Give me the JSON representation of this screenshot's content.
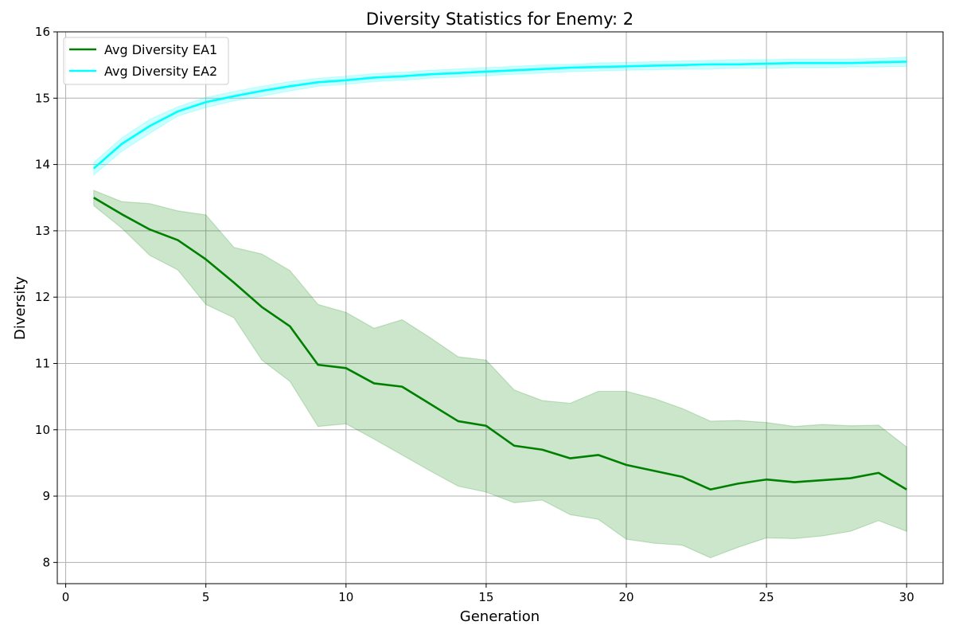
{
  "chart_data": {
    "type": "line",
    "title": "Diversity Statistics for Enemy: 2",
    "xlabel": "Generation",
    "ylabel": "Diversity",
    "xlim": [
      -0.3,
      31.3
    ],
    "ylim": [
      7.68,
      16.0
    ],
    "xticks": [
      0,
      5,
      10,
      15,
      20,
      25,
      30
    ],
    "yticks": [
      8,
      9,
      10,
      11,
      12,
      13,
      14,
      15,
      16
    ],
    "grid": true,
    "legend_position": "upper-left",
    "x": [
      1,
      2,
      3,
      4,
      5,
      6,
      7,
      8,
      9,
      10,
      11,
      12,
      13,
      14,
      15,
      16,
      17,
      18,
      19,
      20,
      21,
      22,
      23,
      24,
      25,
      26,
      27,
      28,
      29,
      30
    ],
    "series": [
      {
        "name": "Avg Diversity EA1",
        "color": "#008000",
        "band_color": "#008000",
        "band_opacity": 0.2,
        "values": [
          13.5,
          13.25,
          13.02,
          12.86,
          12.57,
          12.22,
          11.85,
          11.56,
          10.98,
          10.93,
          10.7,
          10.65,
          10.39,
          10.13,
          10.06,
          9.76,
          9.7,
          9.57,
          9.62,
          9.47,
          9.38,
          9.29,
          9.1,
          9.19,
          9.25,
          9.21,
          9.24,
          9.27,
          9.35,
          9.1
        ],
        "upper": [
          13.61,
          13.44,
          13.41,
          13.3,
          13.24,
          12.75,
          12.65,
          12.4,
          11.89,
          11.77,
          11.53,
          11.66,
          11.39,
          11.1,
          11.05,
          10.6,
          10.44,
          10.4,
          10.58,
          10.58,
          10.47,
          10.32,
          10.13,
          10.14,
          10.11,
          10.05,
          10.08,
          10.06,
          10.07,
          9.74
        ],
        "lower": [
          13.38,
          13.04,
          12.63,
          12.41,
          11.89,
          11.69,
          11.05,
          10.73,
          10.05,
          10.09,
          9.86,
          9.62,
          9.38,
          9.15,
          9.06,
          8.9,
          8.94,
          8.72,
          8.65,
          8.35,
          8.29,
          8.26,
          8.07,
          8.23,
          8.37,
          8.36,
          8.4,
          8.47,
          8.63,
          8.47
        ]
      },
      {
        "name": "Avg Diversity EA2",
        "color": "#00FFFF",
        "band_color": "#00FFFF",
        "band_opacity": 0.2,
        "values": [
          13.94,
          14.31,
          14.58,
          14.8,
          14.94,
          15.03,
          15.11,
          15.18,
          15.24,
          15.27,
          15.31,
          15.33,
          15.36,
          15.38,
          15.4,
          15.42,
          15.44,
          15.46,
          15.47,
          15.48,
          15.49,
          15.5,
          15.51,
          15.51,
          15.52,
          15.53,
          15.53,
          15.53,
          15.54,
          15.55
        ],
        "upper": [
          14.03,
          14.4,
          14.68,
          14.87,
          15.01,
          15.1,
          15.18,
          15.25,
          15.3,
          15.33,
          15.37,
          15.39,
          15.42,
          15.44,
          15.46,
          15.48,
          15.5,
          15.51,
          15.53,
          15.54,
          15.55,
          15.56,
          15.57,
          15.58,
          15.58,
          15.59,
          15.59,
          15.59,
          15.6,
          15.62
        ],
        "lower": [
          13.84,
          14.2,
          14.47,
          14.73,
          14.86,
          14.96,
          15.03,
          15.11,
          15.18,
          15.21,
          15.25,
          15.27,
          15.3,
          15.32,
          15.34,
          15.36,
          15.38,
          15.4,
          15.41,
          15.42,
          15.43,
          15.44,
          15.44,
          15.45,
          15.45,
          15.46,
          15.46,
          15.47,
          15.47,
          15.48
        ]
      }
    ]
  }
}
